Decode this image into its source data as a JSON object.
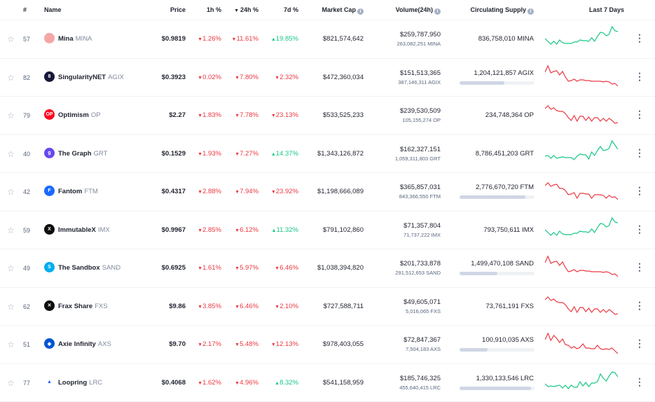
{
  "header": {
    "rank": "#",
    "name": "Name",
    "price": "Price",
    "h1": "1h %",
    "h24": "24h %",
    "d7": "7d %",
    "market_cap": "Market Cap",
    "volume": "Volume(24h)",
    "supply": "Circulating Supply",
    "last7": "Last 7 Days"
  },
  "rows": [
    {
      "rank": "57",
      "name": "Mina",
      "symbol": "MINA",
      "icon_bg": "#f4a7a7",
      "icon_char": "",
      "price": "$0.9819",
      "h1": "1.26%",
      "h1_dir": "down",
      "h24": "11.61%",
      "h24_dir": "down",
      "d7": "19.85%",
      "d7_dir": "up",
      "mcap": "$821,574,642",
      "volume": "$259,787,950",
      "volume_sub": "263,082,251 MINA",
      "supply": "836,758,010 MINA",
      "supply_fraction": 0,
      "spark_trend": "up"
    },
    {
      "rank": "82",
      "name": "SingularityNET",
      "symbol": "AGIX",
      "icon_bg": "#17173a",
      "icon_char": "8",
      "price": "$0.3923",
      "h1": "0.02%",
      "h1_dir": "down",
      "h24": "7.80%",
      "h24_dir": "down",
      "d7": "2.32%",
      "d7_dir": "down",
      "mcap": "$472,360,034",
      "volume": "$151,513,365",
      "volume_sub": "387,146,311 AGIX",
      "supply": "1,204,121,857 AGIX",
      "supply_fraction": 0.6,
      "spark_trend": "down"
    },
    {
      "rank": "79",
      "name": "Optimism",
      "symbol": "OP",
      "icon_bg": "#ff0420",
      "icon_char": "OP",
      "price": "$2.27",
      "h1": "1.83%",
      "h1_dir": "down",
      "h24": "7.78%",
      "h24_dir": "down",
      "d7": "23.13%",
      "d7_dir": "down",
      "mcap": "$533,525,233",
      "volume": "$239,530,509",
      "volume_sub": "105,155,274 OP",
      "supply": "234,748,364 OP",
      "supply_fraction": 0,
      "spark_trend": "down"
    },
    {
      "rank": "40",
      "name": "The Graph",
      "symbol": "GRT",
      "icon_bg": "#6747ed",
      "icon_char": "g",
      "price": "$0.1529",
      "h1": "1.93%",
      "h1_dir": "down",
      "h24": "7.27%",
      "h24_dir": "down",
      "d7": "14.37%",
      "d7_dir": "up",
      "mcap": "$1,343,126,872",
      "volume": "$162,327,151",
      "volume_sub": "1,059,311,803 GRT",
      "supply": "8,786,451,203 GRT",
      "supply_fraction": 0,
      "spark_trend": "up"
    },
    {
      "rank": "42",
      "name": "Fantom",
      "symbol": "FTM",
      "icon_bg": "#1969ff",
      "icon_char": "F",
      "price": "$0.4317",
      "h1": "2.88%",
      "h1_dir": "down",
      "h24": "7.94%",
      "h24_dir": "down",
      "d7": "23.92%",
      "d7_dir": "down",
      "mcap": "$1,198,666,089",
      "volume": "$365,857,031",
      "volume_sub": "843,366,550 FTM",
      "supply": "2,776,670,720 FTM",
      "supply_fraction": 0.88,
      "spark_trend": "down"
    },
    {
      "rank": "59",
      "name": "ImmutableX",
      "symbol": "IMX",
      "icon_bg": "#0d0d0d",
      "icon_char": "X",
      "price": "$0.9967",
      "h1": "2.85%",
      "h1_dir": "down",
      "h24": "6.12%",
      "h24_dir": "down",
      "d7": "11.32%",
      "d7_dir": "up",
      "mcap": "$791,102,860",
      "volume": "$71,357,804",
      "volume_sub": "71,737,222 IMX",
      "supply": "793,750,611 IMX",
      "supply_fraction": 0,
      "spark_trend": "up"
    },
    {
      "rank": "49",
      "name": "The Sandbox",
      "symbol": "SAND",
      "icon_bg": "#00adef",
      "icon_char": "S",
      "price": "$0.6925",
      "h1": "1.61%",
      "h1_dir": "down",
      "h24": "5.97%",
      "h24_dir": "down",
      "d7": "6.46%",
      "d7_dir": "down",
      "mcap": "$1,038,394,820",
      "volume": "$201,733,878",
      "volume_sub": "291,512,653 SAND",
      "supply": "1,499,470,108 SAND",
      "supply_fraction": 0.5,
      "spark_trend": "down"
    },
    {
      "rank": "62",
      "name": "Frax Share",
      "symbol": "FXS",
      "icon_bg": "#0d0d0d",
      "icon_char": "✕",
      "price": "$9.86",
      "h1": "3.85%",
      "h1_dir": "down",
      "h24": "6.46%",
      "h24_dir": "down",
      "d7": "2.10%",
      "d7_dir": "down",
      "mcap": "$727,588,711",
      "volume": "$49,605,071",
      "volume_sub": "5,016,065 FXS",
      "supply": "73,761,191 FXS",
      "supply_fraction": 0,
      "spark_trend": "down"
    },
    {
      "rank": "51",
      "name": "Axie Infinity",
      "symbol": "AXS",
      "icon_bg": "#0055d5",
      "icon_char": "◆",
      "price": "$9.70",
      "h1": "2.17%",
      "h1_dir": "down",
      "h24": "5.48%",
      "h24_dir": "down",
      "d7": "12.13%",
      "d7_dir": "down",
      "mcap": "$978,403,055",
      "volume": "$72,847,367",
      "volume_sub": "7,504,183 AXS",
      "supply": "100,910,035 AXS",
      "supply_fraction": 0.37,
      "spark_trend": "down"
    },
    {
      "rank": "77",
      "name": "Loopring",
      "symbol": "LRC",
      "icon_bg": "#ffffff",
      "icon_char": "▲",
      "price": "$0.4068",
      "h1": "1.62%",
      "h1_dir": "down",
      "h24": "4.96%",
      "h24_dir": "down",
      "d7": "8.32%",
      "d7_dir": "up",
      "mcap": "$541,158,959",
      "volume": "$185,746,325",
      "volume_sub": "455,640,415 LRC",
      "supply": "1,330,133,546 LRC",
      "supply_fraction": 0.95,
      "spark_trend": "up"
    }
  ],
  "colors": {
    "up": "#16c784",
    "down": "#ea3943"
  }
}
